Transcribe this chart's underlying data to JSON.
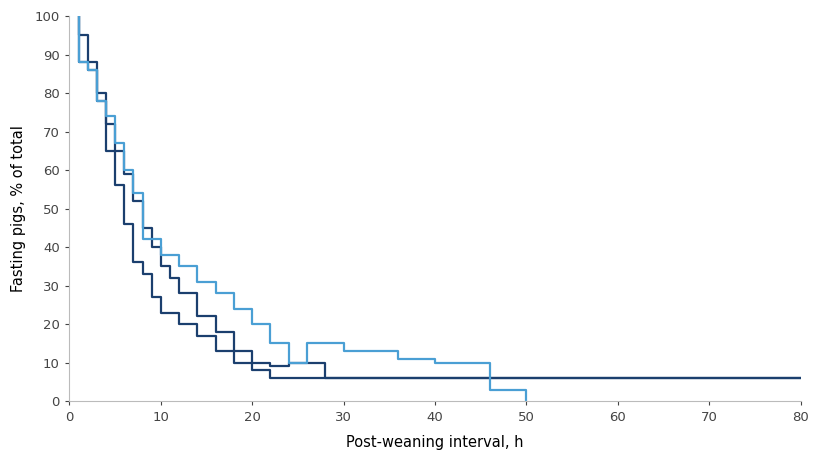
{
  "xlabel": "Post-weaning interval, h",
  "ylabel": "Fasting pigs, % of total",
  "xlim": [
    0,
    80
  ],
  "ylim": [
    0,
    100
  ],
  "xticks": [
    0,
    10,
    20,
    30,
    40,
    50,
    60,
    70,
    80
  ],
  "yticks": [
    0,
    10,
    20,
    30,
    40,
    50,
    60,
    70,
    80,
    90,
    100
  ],
  "background_color": "#ffffff",
  "line_dark1": {
    "color": "#1b3f6e",
    "linewidth": 1.6,
    "x": [
      1,
      1,
      2,
      2,
      3,
      3,
      4,
      4,
      5,
      5,
      6,
      6,
      7,
      7,
      8,
      8,
      9,
      9,
      10,
      10,
      12,
      12,
      14,
      14,
      16,
      16,
      18,
      18,
      20,
      20,
      22,
      22,
      24,
      24,
      26,
      26,
      28,
      28,
      30,
      30,
      75,
      75,
      80
    ],
    "y": [
      100,
      95,
      95,
      88,
      88,
      80,
      80,
      65,
      65,
      56,
      56,
      46,
      46,
      36,
      36,
      33,
      33,
      27,
      27,
      23,
      23,
      20,
      20,
      17,
      17,
      13,
      13,
      10,
      10,
      8,
      8,
      6,
      6,
      6,
      6,
      6,
      6,
      6,
      6,
      6,
      6,
      6,
      6
    ]
  },
  "line_dark2": {
    "color": "#1b3f6e",
    "linewidth": 1.6,
    "x": [
      1,
      1,
      2,
      2,
      3,
      3,
      4,
      4,
      5,
      5,
      6,
      6,
      7,
      7,
      8,
      8,
      9,
      9,
      10,
      10,
      11,
      11,
      12,
      12,
      14,
      14,
      16,
      16,
      18,
      18,
      20,
      20,
      22,
      22,
      24,
      24,
      26,
      26,
      28,
      28,
      30,
      30,
      75,
      75,
      80
    ],
    "y": [
      100,
      88,
      88,
      86,
      86,
      78,
      78,
      72,
      72,
      65,
      65,
      59,
      59,
      52,
      52,
      45,
      45,
      40,
      40,
      35,
      35,
      32,
      32,
      28,
      28,
      22,
      22,
      18,
      18,
      13,
      13,
      10,
      10,
      9,
      9,
      10,
      10,
      10,
      10,
      6,
      6,
      6,
      6,
      6,
      6
    ]
  },
  "line_light": {
    "color": "#4a9fd4",
    "linewidth": 1.6,
    "x": [
      1,
      1,
      2,
      2,
      3,
      3,
      4,
      4,
      5,
      5,
      6,
      6,
      7,
      7,
      8,
      8,
      10,
      10,
      12,
      12,
      14,
      14,
      16,
      16,
      18,
      18,
      20,
      20,
      22,
      22,
      24,
      24,
      26,
      26,
      28,
      28,
      30,
      30,
      32,
      32,
      36,
      36,
      40,
      40,
      46,
      46,
      50,
      50
    ],
    "y": [
      100,
      88,
      88,
      86,
      86,
      78,
      78,
      74,
      74,
      67,
      67,
      60,
      60,
      54,
      54,
      42,
      42,
      38,
      38,
      35,
      35,
      31,
      31,
      28,
      28,
      24,
      24,
      20,
      20,
      15,
      15,
      10,
      10,
      15,
      15,
      15,
      15,
      13,
      13,
      13,
      13,
      11,
      11,
      10,
      10,
      3,
      3,
      0
    ]
  }
}
